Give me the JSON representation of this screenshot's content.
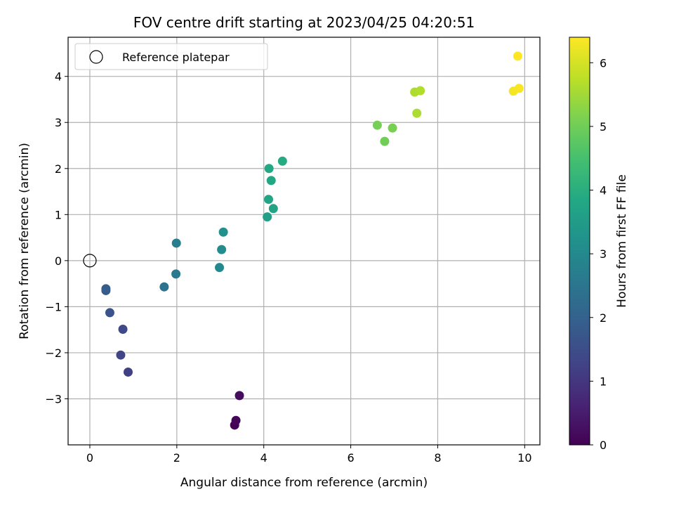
{
  "chart_data": {
    "type": "scatter",
    "title": "FOV centre drift starting at 2023/04/25 04:20:51",
    "xlabel": "Angular distance from reference (arcmin)",
    "ylabel": "Rotation from reference (arcmin)",
    "xlim": [
      -0.5,
      10.35
    ],
    "ylim": [
      -4.0,
      4.85
    ],
    "xticks": [
      0,
      2,
      4,
      6,
      8,
      10
    ],
    "xtick_labels": [
      "0",
      "2",
      "4",
      "6",
      "8",
      "10"
    ],
    "yticks": [
      -3,
      -2,
      -1,
      0,
      1,
      2,
      3,
      4
    ],
    "ytick_labels": [
      "−3",
      "−2",
      "−1",
      "0",
      "1",
      "2",
      "3",
      "4"
    ],
    "grid": true,
    "legend": {
      "placement": "top-left",
      "entries": [
        "Reference platepar"
      ]
    },
    "colorbar": {
      "label": "Hours from first FF file",
      "colormap": "viridis",
      "range": [
        0,
        6.4
      ],
      "ticks": [
        0,
        1,
        2,
        3,
        4,
        5,
        6
      ],
      "tick_labels": [
        "0",
        "1",
        "2",
        "3",
        "4",
        "5",
        "6"
      ]
    },
    "reference_point": {
      "x": 0,
      "y": 0
    },
    "points": [
      {
        "x": 3.33,
        "y": -3.57,
        "hours": 0.0
      },
      {
        "x": 3.36,
        "y": -3.47,
        "hours": 0.1
      },
      {
        "x": 3.44,
        "y": -2.93,
        "hours": 0.2
      },
      {
        "x": 0.88,
        "y": -2.42,
        "hours": 1.2
      },
      {
        "x": 0.71,
        "y": -2.05,
        "hours": 1.3
      },
      {
        "x": 0.76,
        "y": -1.49,
        "hours": 1.4
      },
      {
        "x": 0.46,
        "y": -1.13,
        "hours": 1.6
      },
      {
        "x": 0.37,
        "y": -0.65,
        "hours": 1.8
      },
      {
        "x": 0.37,
        "y": -0.61,
        "hours": 1.85
      },
      {
        "x": 1.71,
        "y": -0.57,
        "hours": 2.4
      },
      {
        "x": 1.98,
        "y": -0.29,
        "hours": 2.6
      },
      {
        "x": 1.99,
        "y": 0.38,
        "hours": 2.7
      },
      {
        "x": 2.98,
        "y": -0.15,
        "hours": 3.0
      },
      {
        "x": 3.03,
        "y": 0.24,
        "hours": 3.1
      },
      {
        "x": 3.07,
        "y": 0.62,
        "hours": 3.2
      },
      {
        "x": 4.08,
        "y": 0.95,
        "hours": 3.6
      },
      {
        "x": 4.22,
        "y": 1.13,
        "hours": 3.7
      },
      {
        "x": 4.11,
        "y": 1.33,
        "hours": 3.75
      },
      {
        "x": 4.17,
        "y": 1.74,
        "hours": 3.8
      },
      {
        "x": 4.12,
        "y": 2.0,
        "hours": 3.85
      },
      {
        "x": 4.43,
        "y": 2.16,
        "hours": 3.9
      },
      {
        "x": 6.78,
        "y": 2.59,
        "hours": 5.0
      },
      {
        "x": 6.61,
        "y": 2.94,
        "hours": 5.05
      },
      {
        "x": 6.96,
        "y": 2.88,
        "hours": 5.1
      },
      {
        "x": 7.52,
        "y": 3.2,
        "hours": 5.6
      },
      {
        "x": 7.47,
        "y": 3.66,
        "hours": 5.6
      },
      {
        "x": 7.6,
        "y": 3.69,
        "hours": 5.65
      },
      {
        "x": 9.74,
        "y": 3.68,
        "hours": 6.3
      },
      {
        "x": 9.87,
        "y": 3.74,
        "hours": 6.35
      },
      {
        "x": 9.84,
        "y": 4.44,
        "hours": 6.4
      }
    ]
  }
}
